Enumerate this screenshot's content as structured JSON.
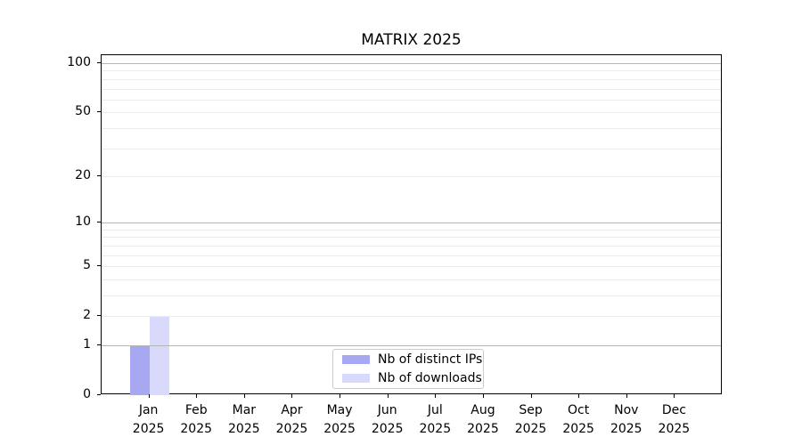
{
  "figure": {
    "background": "#ffffff"
  },
  "chart_data": {
    "type": "bar",
    "title": "MATRIX 2025",
    "categories": [
      "Jan",
      "Feb",
      "Mar",
      "Apr",
      "May",
      "Jun",
      "Jul",
      "Aug",
      "Sep",
      "Oct",
      "Nov",
      "Dec"
    ],
    "x_tick_year": "2025",
    "series": [
      {
        "name": "Nb of distinct IPs",
        "color": "#a7a7f2",
        "values": [
          1,
          0,
          0,
          0,
          0,
          0,
          0,
          0,
          0,
          0,
          0,
          0
        ]
      },
      {
        "name": "Nb of downloads",
        "color": "#d9dafb",
        "values": [
          2,
          0,
          0,
          0,
          0,
          0,
          0,
          0,
          0,
          0,
          0,
          0
        ]
      }
    ],
    "xlabel": "",
    "ylabel": "",
    "y_axis": {
      "scale": "log1p",
      "ticks": [
        0,
        1,
        2,
        5,
        10,
        20,
        50,
        100
      ],
      "ylim": [
        0,
        112
      ],
      "major_gridlines": [
        1,
        10,
        100
      ],
      "minor_gridlines": [
        2,
        3,
        4,
        5,
        6,
        7,
        8,
        9,
        20,
        30,
        40,
        50,
        60,
        70,
        80,
        90
      ]
    },
    "legend": {
      "location": "lower center"
    },
    "colors": {
      "spine": "#000000",
      "major_grid": "#b6b6b6",
      "minor_grid": "#ebebeb",
      "legend_border": "#cccccc",
      "text": "#000000"
    }
  }
}
